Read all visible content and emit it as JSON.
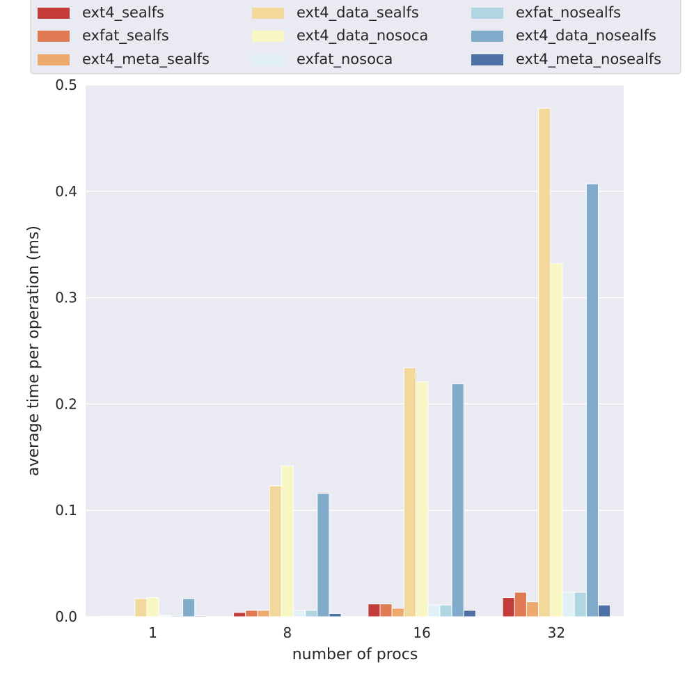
{
  "chart_data": {
    "type": "bar",
    "title": "",
    "xlabel": "number of procs",
    "ylabel": "average time per operation (ms)",
    "ylim": [
      0,
      0.5
    ],
    "yticks": [
      "0.0",
      "0.1",
      "0.2",
      "0.3",
      "0.4",
      "0.5"
    ],
    "ytick_values": [
      0,
      0.1,
      0.2,
      0.3,
      0.4,
      0.5
    ],
    "categories": [
      "1",
      "8",
      "16",
      "32"
    ],
    "legend_position": "top",
    "series": [
      {
        "name": "ext4_sealfs",
        "color": "#c43c39",
        "values": [
          0.0005,
          0.004,
          0.012,
          0.018
        ]
      },
      {
        "name": "exfat_sealfs",
        "color": "#e07a55",
        "values": [
          0.0005,
          0.006,
          0.012,
          0.023
        ]
      },
      {
        "name": "ext4_meta_sealfs",
        "color": "#eea96e",
        "values": [
          0.0005,
          0.006,
          0.008,
          0.014
        ]
      },
      {
        "name": "ext4_data_sealfs",
        "color": "#f2d89b",
        "values": [
          0.017,
          0.123,
          0.234,
          0.478
        ]
      },
      {
        "name": "ext4_data_nosoca",
        "color": "#f8f6c3",
        "values": [
          0.018,
          0.142,
          0.221,
          0.332
        ]
      },
      {
        "name": "exfat_nosoca",
        "color": "#e1f0f4",
        "values": [
          0.0012,
          0.006,
          0.011,
          0.023
        ]
      },
      {
        "name": "exfat_nosealfs",
        "color": "#b1d6e3",
        "values": [
          0.0012,
          0.006,
          0.011,
          0.023
        ]
      },
      {
        "name": "ext4_data_nosealfs",
        "color": "#80abcb",
        "values": [
          0.017,
          0.116,
          0.219,
          0.407
        ]
      },
      {
        "name": "ext4_meta_nosealfs",
        "color": "#4d71a4",
        "values": [
          0.0008,
          0.003,
          0.006,
          0.011
        ]
      }
    ]
  }
}
